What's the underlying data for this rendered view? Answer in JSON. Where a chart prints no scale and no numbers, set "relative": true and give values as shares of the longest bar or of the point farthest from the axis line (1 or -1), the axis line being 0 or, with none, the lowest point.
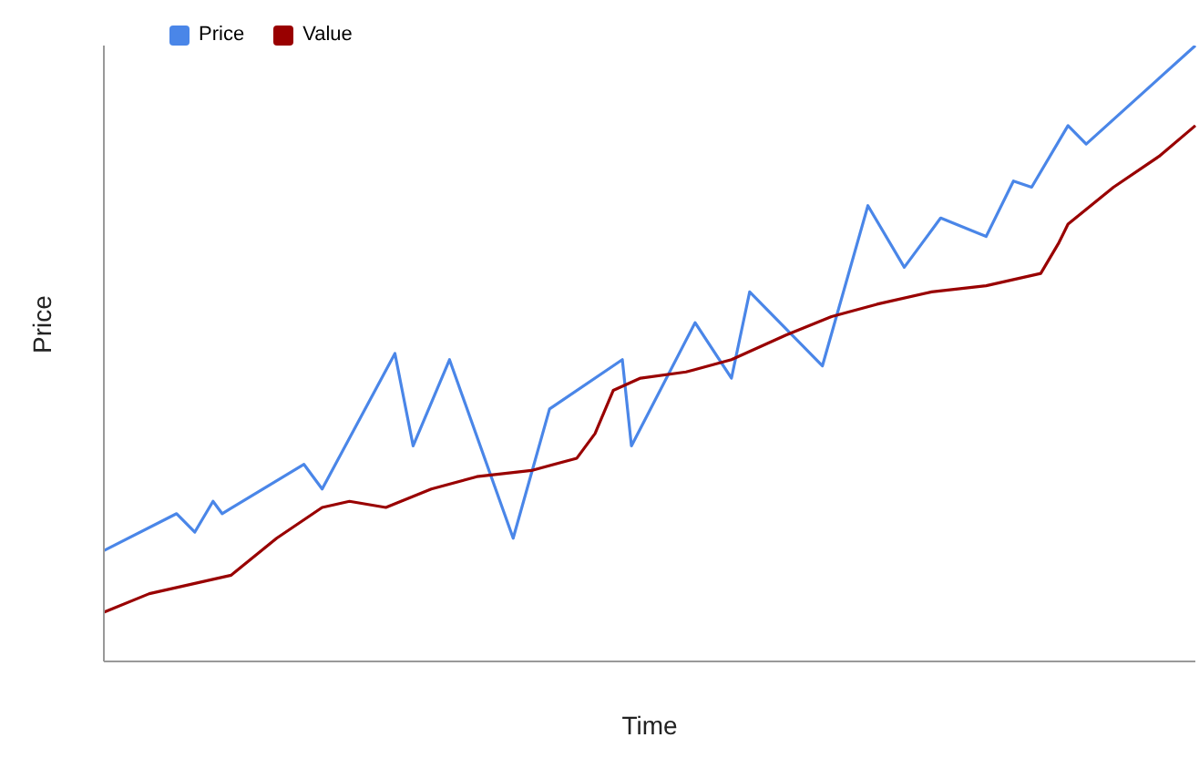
{
  "chart_data": {
    "type": "line",
    "relative": true,
    "xlabel": "Time",
    "ylabel": "Price",
    "legend": "top",
    "grid": false,
    "marker": "none",
    "line_style": "solid",
    "categories": [
      null,
      null,
      null,
      null,
      null,
      null,
      null,
      null,
      null,
      null,
      null,
      null,
      null,
      null,
      null,
      null,
      null,
      null,
      null,
      null,
      null,
      null,
      null,
      null,
      null,
      null,
      null,
      null,
      null,
      null,
      null,
      null,
      null,
      null,
      null,
      null,
      null,
      null,
      null,
      null,
      null,
      null,
      null,
      null,
      null,
      null,
      null,
      null,
      null,
      null,
      null,
      null,
      null,
      null,
      null,
      null,
      null,
      null,
      null,
      null,
      null,
      null,
      null,
      null,
      null,
      null,
      null,
      null,
      null,
      null,
      null,
      null,
      null,
      null,
      null,
      null,
      null,
      null,
      null,
      null,
      null,
      null,
      null,
      null,
      null,
      null,
      null,
      null,
      null,
      null,
      null,
      null,
      null,
      null,
      null,
      null,
      null,
      null,
      null,
      null,
      null,
      null,
      null,
      null,
      null,
      null,
      null,
      null,
      null,
      null,
      null,
      null,
      null,
      null,
      null,
      null,
      null,
      null,
      null,
      null,
      null
    ],
    "series": [
      {
        "name": "Price",
        "color": "#4a86e8",
        "values": [
          0.18,
          null,
          null,
          null,
          null,
          null,
          null,
          null,
          0.24,
          null,
          0.21,
          null,
          0.26,
          0.24,
          null,
          null,
          null,
          null,
          null,
          null,
          null,
          null,
          0.32,
          null,
          0.28,
          null,
          null,
          null,
          null,
          null,
          null,
          null,
          0.5,
          null,
          0.35,
          null,
          null,
          null,
          0.49,
          null,
          null,
          null,
          null,
          null,
          null,
          0.2,
          null,
          null,
          null,
          0.41,
          null,
          null,
          null,
          null,
          null,
          null,
          null,
          0.49,
          0.35,
          null,
          null,
          null,
          null,
          null,
          null,
          0.55,
          null,
          null,
          null,
          0.46,
          null,
          0.6,
          null,
          null,
          null,
          null,
          null,
          null,
          null,
          0.48,
          null,
          null,
          null,
          null,
          0.74,
          null,
          null,
          null,
          0.64,
          null,
          null,
          null,
          0.72,
          null,
          null,
          null,
          null,
          0.69,
          null,
          null,
          0.78,
          null,
          0.77,
          null,
          null,
          null,
          0.87,
          null,
          0.84,
          null,
          null,
          null,
          null,
          null,
          null,
          null,
          null,
          null,
          null,
          null,
          1
        ]
      },
      {
        "name": "Value",
        "color": "#990000",
        "values": [
          0.08,
          null,
          null,
          null,
          null,
          0.11,
          null,
          null,
          null,
          null,
          null,
          0.13,
          null,
          null,
          0.14,
          null,
          null,
          null,
          null,
          0.2,
          null,
          null,
          null,
          null,
          0.25,
          null,
          null,
          0.26,
          null,
          null,
          null,
          0.25,
          null,
          null,
          null,
          null,
          0.28,
          null,
          null,
          null,
          null,
          0.3,
          null,
          null,
          null,
          null,
          null,
          0.31,
          null,
          null,
          null,
          null,
          0.33,
          null,
          0.37,
          null,
          0.44,
          null,
          null,
          0.46,
          null,
          null,
          null,
          null,
          0.47,
          null,
          null,
          null,
          null,
          0.49,
          null,
          null,
          null,
          null,
          null,
          0.53,
          null,
          null,
          null,
          null,
          0.56,
          null,
          null,
          null,
          null,
          0.58,
          null,
          null,
          null,
          null,
          null,
          0.6,
          null,
          null,
          null,
          null,
          null,
          0.61,
          null,
          null,
          null,
          null,
          null,
          0.63,
          null,
          0.68,
          0.71,
          null,
          null,
          null,
          null,
          0.77,
          null,
          null,
          null,
          null,
          0.82,
          null,
          null,
          null,
          0.87
        ]
      }
    ]
  }
}
